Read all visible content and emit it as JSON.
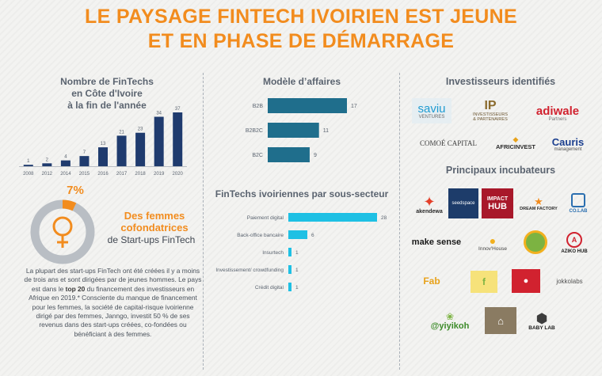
{
  "title": {
    "line1": "LE PAYSAGE FINTECH IVOIRIEN EST JEUNE",
    "line2": "ET EN PHASE DE DÉMARRAGE"
  },
  "colors": {
    "accent": "#f28c1e",
    "navy": "#1f3b6e",
    "teal": "#1f6e8c",
    "cyan": "#1ec0e4",
    "gray": "#7e8790"
  },
  "left": {
    "title_lines": [
      "Nombre de FinTechs",
      "en Côte d'Ivoire",
      "à la fin de l'année"
    ],
    "stat": {
      "percent": "7%",
      "value": 0.07,
      "headline_lines": [
        "Des femmes",
        "cofondatrices"
      ],
      "sub": "de Start-ups FinTech"
    },
    "paragraph": {
      "part1": "La plupart des start-ups FinTech ont été créées il y a moins de trois ans et sont dirigées par de jeunes hommes. Le pays est dans le ",
      "bold": "top 20",
      "part2": " du financement des investisseurs en Afrique en 2019.* Consciente du manque de financement pour les femmes, la société de capital-risque ivoirienne dirigé par des femmes, Janngo, investit 50 % de ses revenus dans des start-ups créées, co-fondées ou bénéficiant à des femmes."
    }
  },
  "chart_data": [
    {
      "type": "bar",
      "title": "Nombre de FinTechs en Côte d'Ivoire à la fin de l'année",
      "categories": [
        "2008",
        "2012",
        "2014",
        "2015",
        "2016",
        "2017",
        "2018",
        "2019",
        "2020"
      ],
      "values": [
        1,
        2,
        4,
        7,
        13,
        21,
        23,
        34,
        37
      ],
      "ylim": [
        0,
        37
      ]
    },
    {
      "type": "bar",
      "orientation": "horizontal",
      "title": "Modèle d’affaires",
      "categories": [
        "B2B",
        "B2B2C",
        "B2C"
      ],
      "values": [
        17,
        11,
        9
      ],
      "xlim": [
        0,
        17
      ]
    },
    {
      "type": "bar",
      "orientation": "horizontal",
      "title": "FinTechs ivoiriennes par sous-secteur",
      "categories": [
        "Paiement digital",
        "Back-office bancaire",
        "Insurtech",
        "Investissement/ crowdfunding",
        "Crédit digital"
      ],
      "values": [
        28,
        6,
        1,
        1,
        1
      ],
      "xlim": [
        0,
        28
      ]
    }
  ],
  "right": {
    "investors_title": "Investisseurs identifiés",
    "incubators_title": "Principaux incubateurs",
    "investors": {
      "saviu_1": "saviu",
      "saviu_2": "VENTURES",
      "ip_1": "INVESTISSEURS",
      "ip_2": "& PARTENAIRES",
      "adiwale_1": "adiwale",
      "adiwale_2": "Partners",
      "comoe": "COMOÉ CAPITAL",
      "afric": "AFRICINVEST",
      "cauris_1": "Cauris",
      "cauris_2": "management"
    },
    "incubators": {
      "akendewa": "akendewa",
      "seedspace": "seedspace",
      "impact_1": "IMPACT",
      "impact_2": "HUB",
      "dreamfactory": "DREAM FACTORY",
      "colab": "CO.LAB",
      "makesense": "make sense",
      "innov": "Innov'House",
      "azikohub": "AZIKO HUB",
      "fab": "Fab",
      "jokkolabs": "jokkolabs",
      "yiyikoh": "@yiyikoh",
      "babylab": "BABY LAB"
    }
  }
}
